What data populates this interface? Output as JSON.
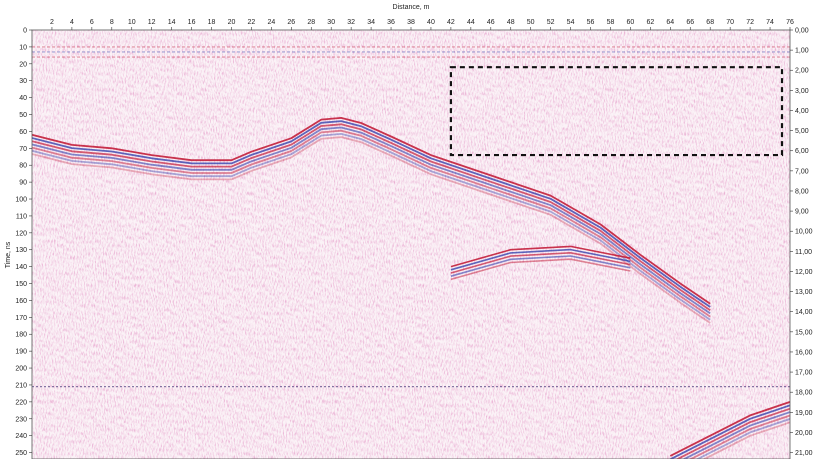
{
  "chart_data": {
    "type": "heatmap",
    "title": "",
    "xlabel": "Distance, m",
    "ylabel": "Time, ns",
    "xlim": [
      0,
      76
    ],
    "ylim": [
      0,
      250
    ],
    "right_axis_lim": [
      0,
      21
    ],
    "x_ticks": [
      "2",
      "4",
      "6",
      "8",
      "10",
      "12",
      "14",
      "16",
      "18",
      "20",
      "22",
      "24",
      "26",
      "28",
      "30",
      "32",
      "34",
      "36",
      "38",
      "40",
      "42",
      "44",
      "46",
      "48",
      "50",
      "52",
      "54",
      "56",
      "58",
      "60",
      "62",
      "64",
      "66",
      "68",
      "70",
      "72",
      "74",
      "76"
    ],
    "y_ticks": [
      "0",
      "10",
      "20",
      "30",
      "40",
      "50",
      "60",
      "70",
      "80",
      "90",
      "100",
      "110",
      "120",
      "130",
      "140",
      "150",
      "160",
      "170",
      "180",
      "190",
      "200",
      "210",
      "220",
      "230",
      "240",
      "250"
    ],
    "right_ticks": [
      "0,00",
      "1,00",
      "2,00",
      "3,00",
      "4,00",
      "5,00",
      "6,00",
      "7,00",
      "8,00",
      "9,00",
      "10,00",
      "11,00",
      "12,00",
      "13,00",
      "14,00",
      "15,00",
      "16,00",
      "17,00",
      "18,00",
      "19,00",
      "20,00",
      "21,00"
    ],
    "reflector_main": [
      {
        "x": 0,
        "y": 62
      },
      {
        "x": 4,
        "y": 68
      },
      {
        "x": 8,
        "y": 70
      },
      {
        "x": 12,
        "y": 74
      },
      {
        "x": 16,
        "y": 77
      },
      {
        "x": 20,
        "y": 77
      },
      {
        "x": 22,
        "y": 72
      },
      {
        "x": 26,
        "y": 64
      },
      {
        "x": 29,
        "y": 53
      },
      {
        "x": 31,
        "y": 52
      },
      {
        "x": 33,
        "y": 55
      },
      {
        "x": 36,
        "y": 63
      },
      {
        "x": 40,
        "y": 74
      },
      {
        "x": 46,
        "y": 86
      },
      {
        "x": 52,
        "y": 98
      },
      {
        "x": 57,
        "y": 115
      },
      {
        "x": 61,
        "y": 133
      },
      {
        "x": 65,
        "y": 150
      },
      {
        "x": 68,
        "y": 162
      }
    ],
    "reflector_deep": [
      {
        "x": 42,
        "y": 140
      },
      {
        "x": 48,
        "y": 130
      },
      {
        "x": 54,
        "y": 128
      },
      {
        "x": 60,
        "y": 135
      }
    ],
    "reflector_corner": [
      {
        "x": 64,
        "y": 252
      },
      {
        "x": 68,
        "y": 240
      },
      {
        "x": 72,
        "y": 228
      },
      {
        "x": 76,
        "y": 220
      }
    ],
    "horizontal_event_time": 211,
    "annotation_box": {
      "x": [
        42,
        76
      ],
      "y": [
        22,
        74
      ],
      "style": "dashed"
    },
    "colors": {
      "positive": "#c0122f",
      "negative": "#2a3aa8",
      "background_texture": "#b5327a"
    }
  }
}
